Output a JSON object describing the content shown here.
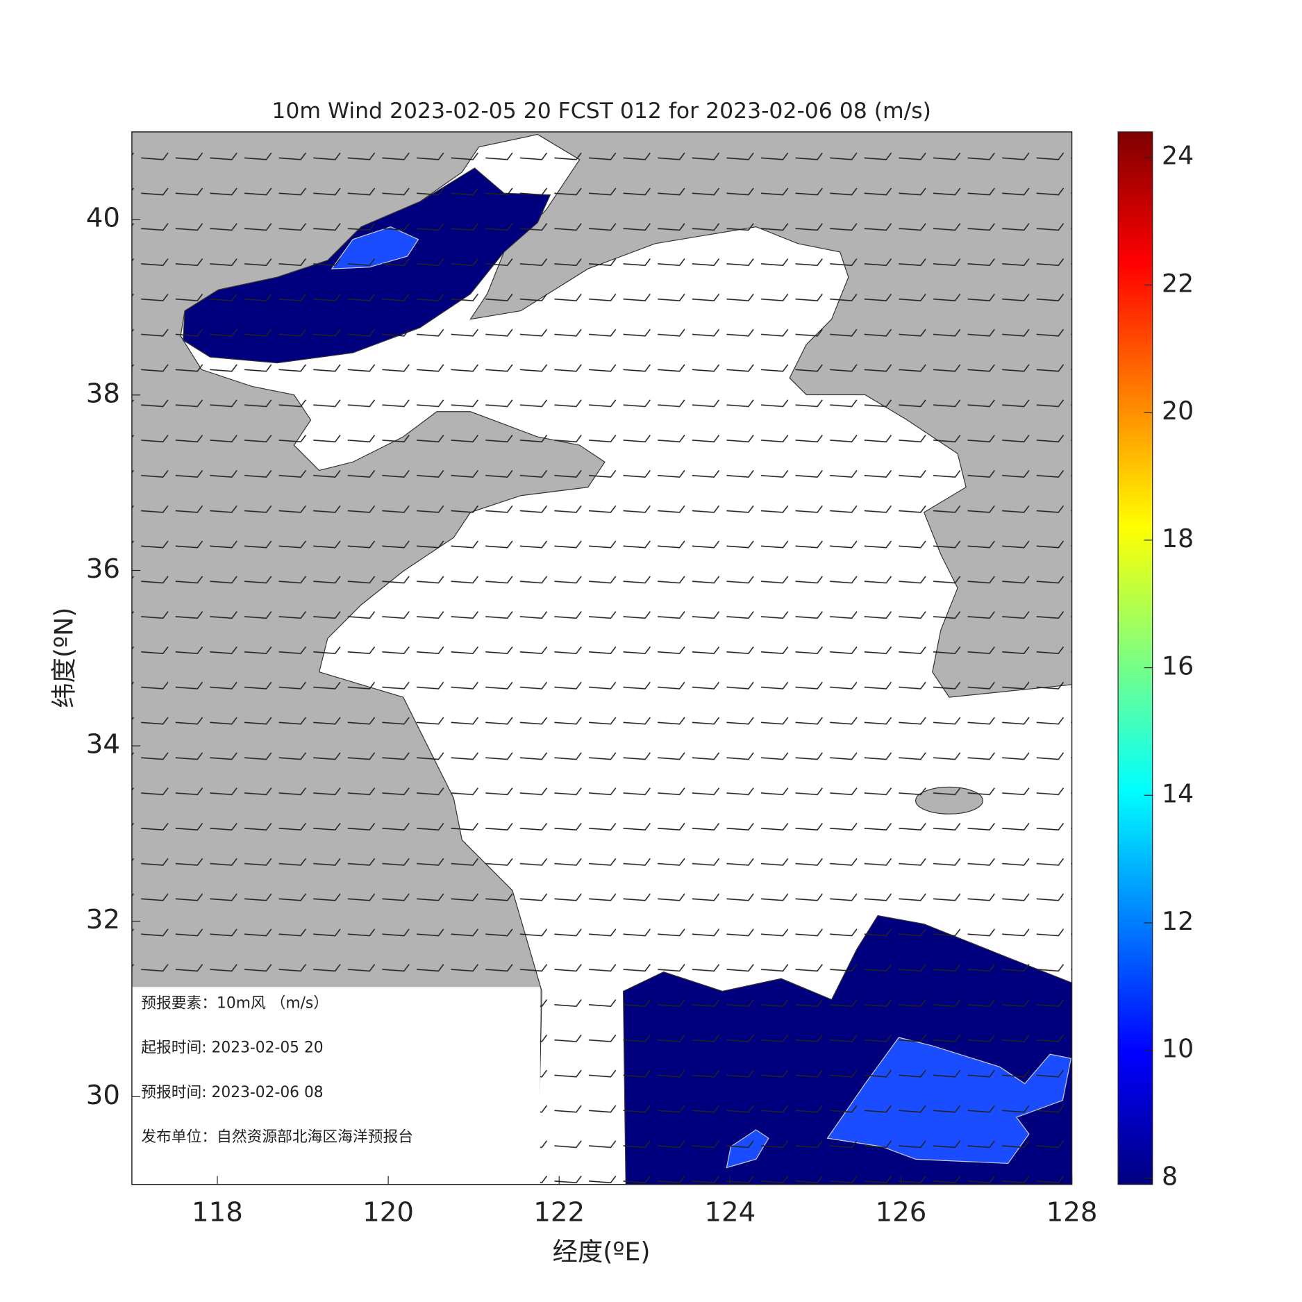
{
  "chart_data": {
    "type": "map",
    "title": "10m Wind 2023-02-05 20 FCST 012 for 2023-02-06 08 (m/s)",
    "x_label": "经度(ºE)",
    "y_label": "纬度(ºN)",
    "xlim": [
      117,
      128
    ],
    "xticks": [
      118,
      120,
      122,
      124,
      126,
      128
    ],
    "ylim": [
      29,
      41
    ],
    "yticks": [
      30,
      32,
      34,
      36,
      38,
      40
    ],
    "colorbar": {
      "lim": [
        7.9,
        24.4
      ],
      "ticks": [
        8,
        10,
        12,
        14,
        16,
        18,
        20,
        22,
        24
      ],
      "colors": [
        "#00007f",
        "#0000ff",
        "#007fff",
        "#00ffff",
        "#7fff7f",
        "#ffff00",
        "#ff7f00",
        "#ff0000",
        "#7f0000"
      ]
    },
    "info": [
      "预报要素：10m风 （m/s）",
      "起报时间: 2023-02-05 20",
      "预报时间: 2023-02-06 08",
      "发布单位：自然资源部北海区海洋预报台"
    ]
  }
}
